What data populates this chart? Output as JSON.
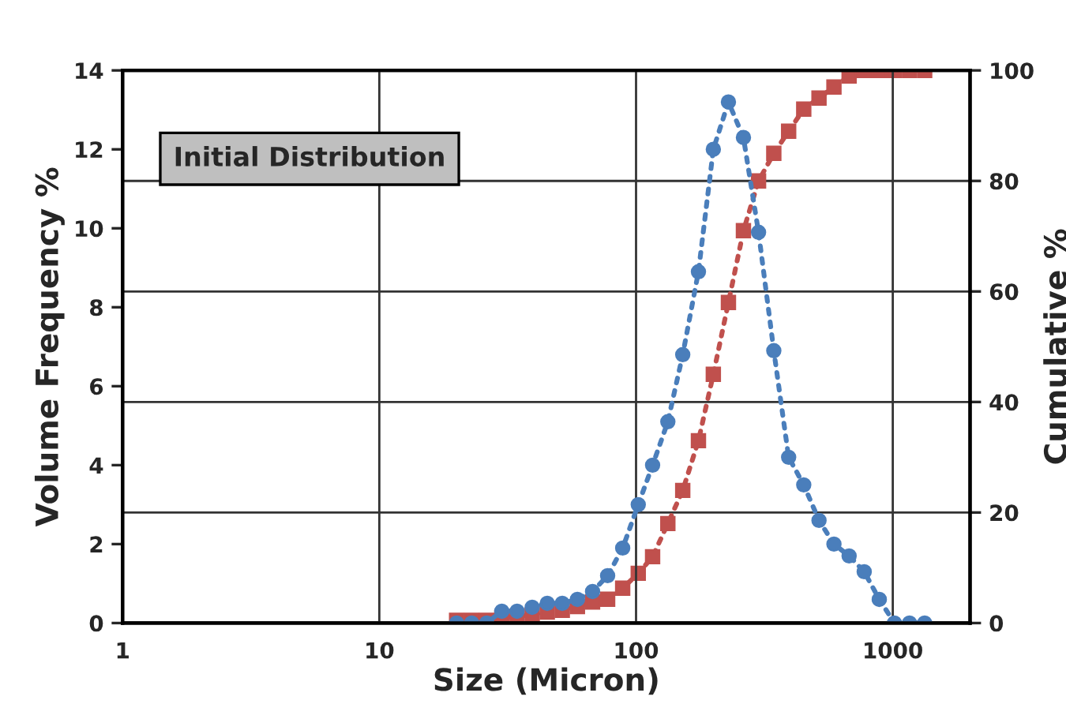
{
  "chart_data": {
    "type": "line",
    "xlabel": "Size (Micron)",
    "ylabel": "Volume Frequency %",
    "y2label": "Cumulative %",
    "annotations": [
      "Initial Distribution"
    ],
    "x": [
      20,
      22.9,
      26.2,
      30.0,
      34.4,
      39.4,
      45.1,
      51.6,
      59.1,
      67.7,
      77.5,
      88.7,
      102,
      116,
      133,
      152,
      175,
      200,
      229,
      262,
      300,
      344,
      393,
      450,
      516,
      590,
      676,
      774,
      886,
      1015,
      1162,
      1331
    ],
    "series": [
      {
        "color": "#4a7ebb",
        "marker": "circle",
        "values": [
          0,
          0,
          0,
          0.3,
          0.3,
          0.4,
          0.5,
          0.5,
          0.6,
          0.8,
          1.2,
          1.9,
          3.0,
          4.0,
          5.1,
          6.8,
          8.9,
          12.0,
          13.2,
          12.3,
          9.9,
          6.9,
          4.2,
          3.5,
          2.6,
          2.0,
          1.7,
          1.3,
          0.6,
          0,
          0,
          0
        ]
      },
      {
        "color": "#c0504d",
        "marker": "square",
        "axis": "y2",
        "values": [
          0.5,
          0.5,
          0.5,
          1,
          1.2,
          1.5,
          2,
          2.3,
          3,
          3.8,
          4.3,
          6.3,
          9,
          12,
          18,
          24,
          33,
          45,
          58,
          71,
          80,
          85,
          89,
          93,
          95,
          97,
          99,
          100,
          100,
          100,
          100,
          100
        ]
      }
    ],
    "log": "x",
    "xlim": [
      1,
      2000
    ],
    "xticks": [
      1,
      10,
      100,
      1000
    ],
    "ylim": [
      0,
      14
    ],
    "yticks": [
      0,
      2,
      4,
      6,
      8,
      10,
      12,
      14
    ],
    "y2lim": [
      0,
      100
    ],
    "y2ticks": [
      0,
      20,
      40,
      60,
      80,
      100
    ],
    "grid": true,
    "line_style": "dotted",
    "legend": false
  }
}
